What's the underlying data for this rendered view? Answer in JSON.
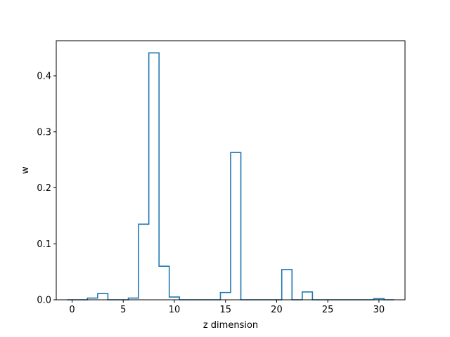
{
  "chart_data": {
    "type": "step",
    "title": "",
    "xlabel": "z dimension",
    "ylabel": "w",
    "xlim": [
      -1.55,
      32.55
    ],
    "ylim": [
      0,
      0.4627
    ],
    "x_ticks": [
      0,
      5,
      10,
      15,
      20,
      25,
      30
    ],
    "x_tick_labels": [
      "0",
      "5",
      "10",
      "15",
      "20",
      "25",
      "30"
    ],
    "y_ticks": [
      0.0,
      0.1,
      0.2,
      0.3,
      0.4
    ],
    "y_tick_labels": [
      "0.0",
      "0.1",
      "0.2",
      "0.3",
      "0.4"
    ],
    "grid": false,
    "legend": "none",
    "series": [
      {
        "color": "#1f77b4",
        "x": [
          0,
          1,
          2,
          3,
          4,
          5,
          6,
          7,
          8,
          9,
          10,
          11,
          12,
          13,
          14,
          15,
          16,
          17,
          18,
          19,
          20,
          21,
          22,
          23,
          24,
          25,
          26,
          27,
          28,
          29,
          30,
          31
        ],
        "values": [
          0.0,
          0.0,
          0.003,
          0.011,
          0.0,
          0.0,
          0.003,
          0.135,
          0.441,
          0.06,
          0.005,
          0.0,
          0.0,
          0.0,
          0.0,
          0.013,
          0.263,
          0.0,
          0.0,
          0.0,
          0.0,
          0.054,
          0.0,
          0.014,
          0.0,
          0.0,
          0.0,
          0.0,
          0.0,
          0.0,
          0.002,
          0.0
        ]
      }
    ]
  }
}
